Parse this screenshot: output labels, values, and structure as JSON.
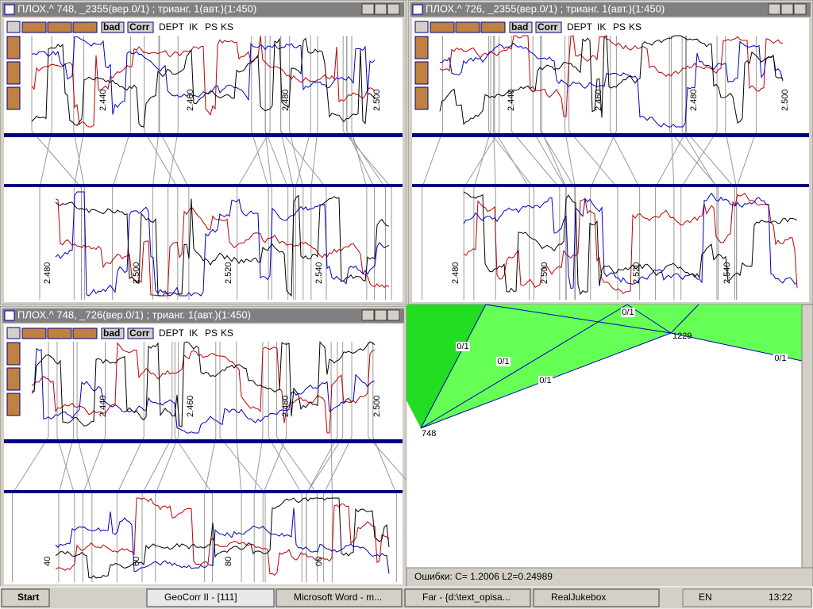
{
  "windows": [
    {
      "title": "ПЛОХ.^ 748, _2355(вер.0/1) ; трианг. 1(авт.)(1:450)",
      "toolbar": [
        "bad",
        "Corr",
        "DEPT",
        "IK",
        "PS",
        "KS"
      ],
      "top_depths": [
        "2.440",
        "2.460",
        "2.480",
        "2.500"
      ],
      "bottom_depths": [
        "2.480",
        "2.500",
        "2.520",
        "2.540"
      ]
    },
    {
      "title": "ПЛОХ.^ 726, _2355(вер.0/1) ; трианг. 1(авт.)(1:450)",
      "toolbar": [
        "bad",
        "Corr",
        "DEPT",
        "IK",
        "PS",
        "KS"
      ],
      "top_depths": [
        "2.440",
        "2.460",
        "2.480",
        "2.500"
      ],
      "bottom_depths": [
        "2.480",
        "2.500",
        "2.520",
        "2.540"
      ]
    },
    {
      "title": "ПЛОХ.^ 748, _726(вер.0/1) ; трианг. 1(авт.)(1:450)",
      "toolbar": [
        "bad",
        "Corr",
        "DEPT",
        "IK",
        "PS",
        "KS"
      ],
      "top_depths": [
        "2.440",
        "2.460",
        "2.480",
        "2.500"
      ],
      "bottom_depths": [
        "40",
        "60",
        "80",
        "00"
      ]
    }
  ],
  "triangulation": {
    "edge_labels": [
      "0/1",
      "0/1",
      "0/1",
      "0/1",
      "0/1"
    ],
    "nodes": [
      "1229",
      "748"
    ],
    "status": "Ошибки: C=  1.2006 L2=0.24989"
  },
  "taskbar": {
    "start": "Start",
    "tasks": [
      "GeoCorr II  - [111]",
      "Microsoft Word - m...",
      "Far - {d:\\text_opisa...",
      "RealJukebox"
    ],
    "lang": "EN",
    "clock": "13:22"
  }
}
